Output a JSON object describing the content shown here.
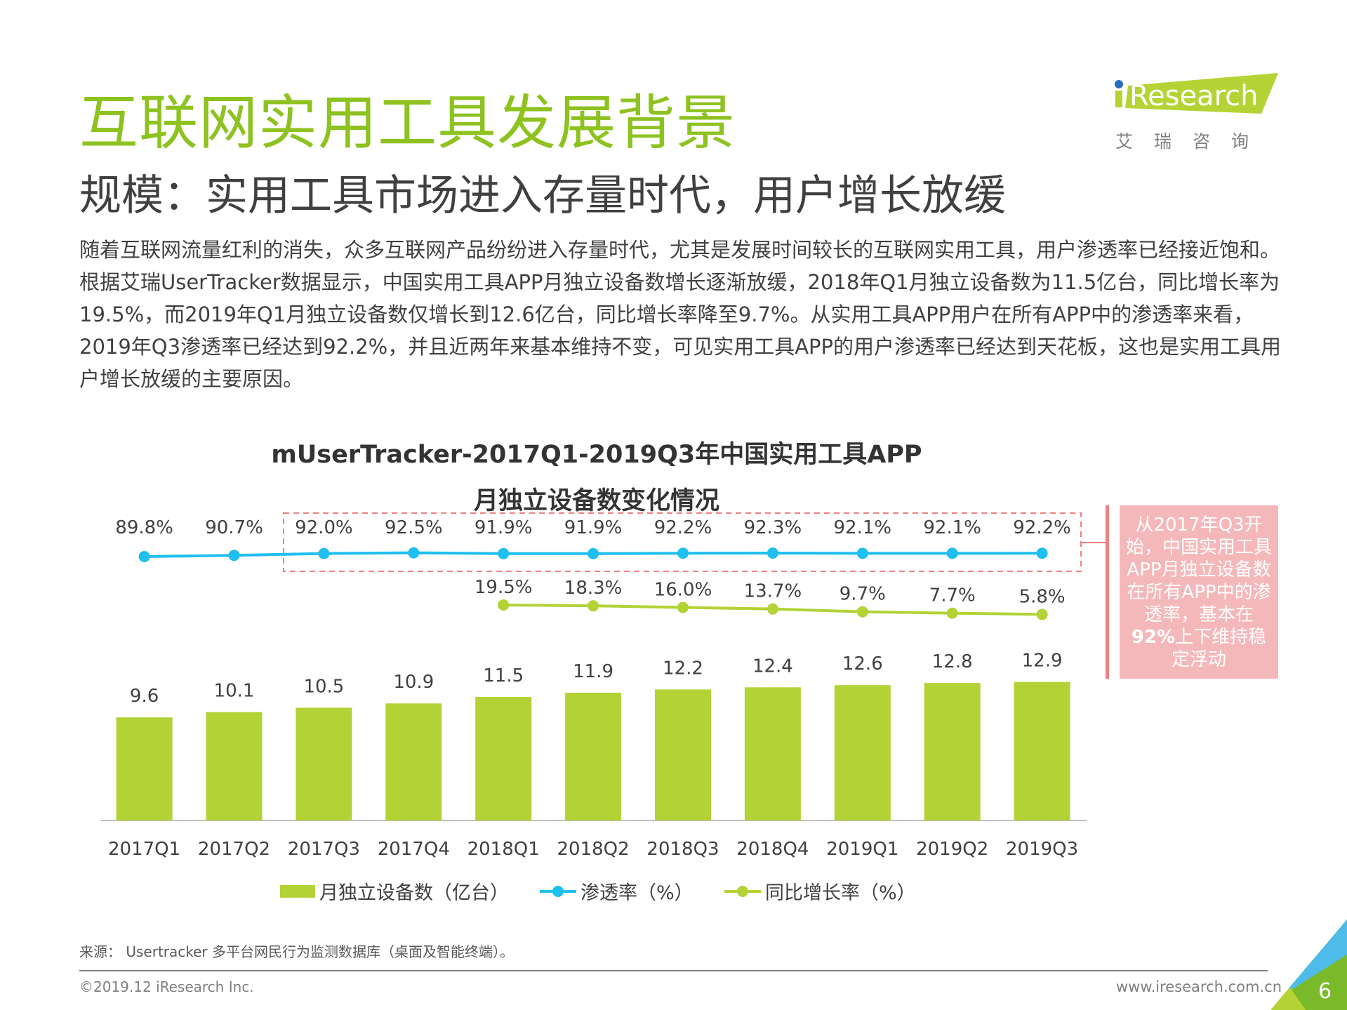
{
  "header": {
    "title": "互联网实用工具发展背景",
    "subtitle": "规模：实用工具市场进入存量时代，用户增长放缓",
    "body": "随着互联网流量红利的消失，众多互联网产品纷纷进入存量时代，尤其是发展时间较长的互联网实用工具，用户渗透率已经接近饱和。根据艾瑞UserTracker数据显示，中国实用工具APP月独立设备数增长逐渐放缓，2018年Q1月独立设备数为11.5亿台，同比增长率为19.5%，而2019年Q1月独立设备数仅增长到12.6亿台，同比增长率降至9.7%。从实用工具APP用户在所有APP中的渗透率来看，2019年Q3渗透率已经达到92.2%，并且近两年来基本维持不变，可见实用工具APP的用户渗透率已经达到天花板，这也是实用工具用户增长放缓的主要原因。"
  },
  "logo": {
    "text": "iResearch",
    "cn": "艾 瑞 咨 询"
  },
  "note": {
    "pre": "从2017年Q3开始，中国实用工具APP月独立设备数在所有APP中的渗透率，基本在",
    "bold": "92%",
    "post": "上下维持稳定浮动"
  },
  "chart_data": {
    "type": "bar+line",
    "title_line1": "mUserTracker-2017Q1-2019Q3年中国实用工具APP",
    "title_line2": "月独立设备数变化情况",
    "categories": [
      "2017Q1",
      "2017Q2",
      "2017Q3",
      "2017Q4",
      "2018Q1",
      "2018Q2",
      "2018Q3",
      "2018Q4",
      "2019Q1",
      "2019Q2",
      "2019Q3"
    ],
    "series": [
      {
        "name": "月独立设备数（亿台）",
        "type": "bar",
        "values": [
          9.6,
          10.1,
          10.5,
          10.9,
          11.5,
          11.9,
          12.2,
          12.4,
          12.6,
          12.8,
          12.9
        ]
      },
      {
        "name": "渗透率（%）",
        "type": "line",
        "values": [
          89.8,
          90.7,
          92.0,
          92.5,
          91.9,
          91.9,
          92.2,
          92.3,
          92.1,
          92.1,
          92.2
        ],
        "labels": [
          "89.8%",
          "90.7%",
          "92.0%",
          "92.5%",
          "91.9%",
          "91.9%",
          "92.2%",
          "92.3%",
          "92.1%",
          "92.1%",
          "92.2%"
        ]
      },
      {
        "name": "同比增长率（%）",
        "type": "line",
        "values": [
          null,
          null,
          null,
          null,
          19.5,
          18.3,
          16.0,
          13.7,
          9.7,
          7.7,
          5.8
        ],
        "labels": [
          "",
          "",
          "",
          "",
          "19.5%",
          "18.3%",
          "16.0%",
          "13.7%",
          "9.7%",
          "7.7%",
          "5.8%"
        ]
      }
    ],
    "legend_position": "bottom",
    "grid": false,
    "colors": {
      "bar": "#b2d235",
      "penetration": "#1fbfef",
      "growth": "#b2d235",
      "highlight": "#f08080"
    }
  },
  "footer": {
    "source": "来源： Usertracker 多平台网民行为监测数据库（桌面及智能终端）。",
    "copyright": "©2019.12 iResearch Inc.",
    "website": "www.iresearch.com.cn",
    "page": "6"
  }
}
